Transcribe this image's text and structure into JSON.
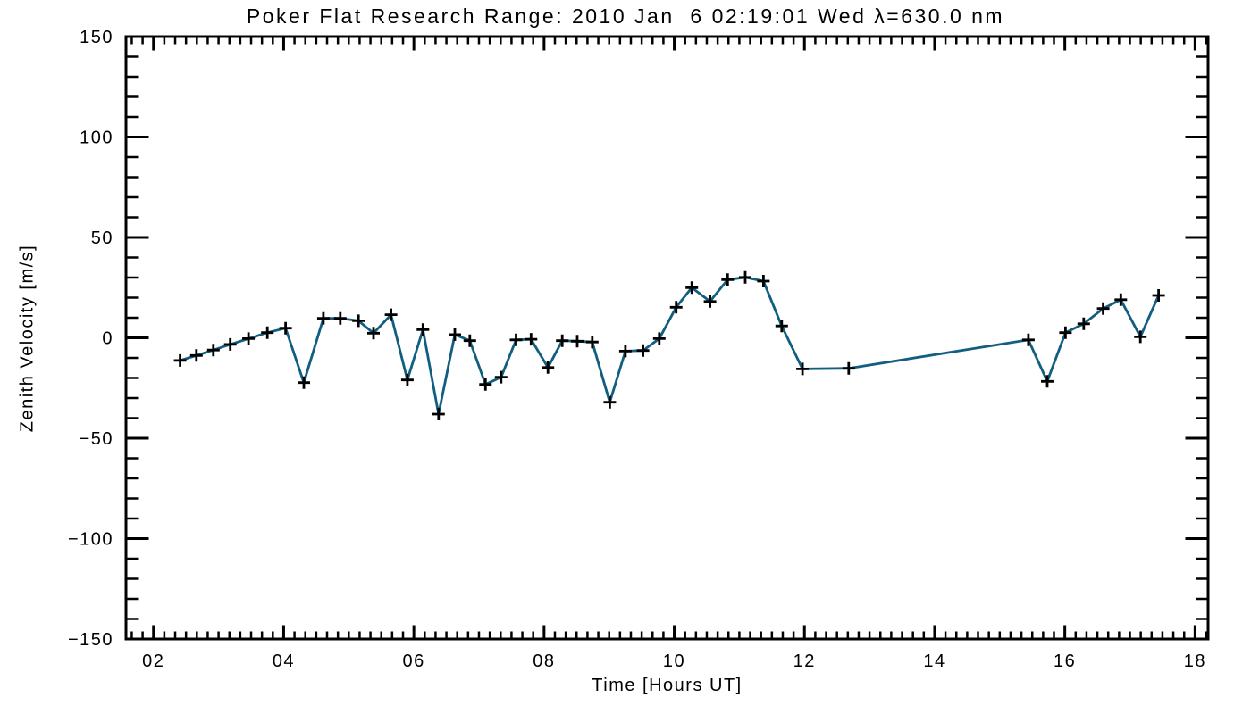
{
  "chart_data": {
    "type": "line",
    "title": "Poker Flat Research Range: 2010 Jan  6 02:19:01 Wed λ=630.0 nm",
    "xlabel": "Time [Hours UT]",
    "ylabel": "Zenith Velocity [m/s]",
    "xlim": [
      1.578,
      18.201
    ],
    "ylim": [
      -150,
      150
    ],
    "grid": false,
    "legend": false,
    "x_ticks": {
      "values": [
        2,
        4,
        6,
        8,
        10,
        12,
        14,
        16,
        18
      ],
      "labels": [
        "02",
        "04",
        "06",
        "08",
        "10",
        "12",
        "14",
        "16",
        "18"
      ],
      "minor_step": 0.1666667
    },
    "y_ticks": {
      "values": [
        150,
        100,
        50,
        0,
        -50,
        -100,
        -150
      ],
      "labels": [
        "150",
        "100",
        "50",
        "0",
        "−50",
        "−100",
        "−150"
      ],
      "minor_step": 10
    },
    "marker": "plus",
    "line_color": "#115e80",
    "marker_color": "#000000",
    "frame_color": "#000000",
    "series": [
      {
        "name": "zenith-velocity",
        "x": [
          2.41,
          2.66,
          2.92,
          3.18,
          3.46,
          3.75,
          4.03,
          4.31,
          4.61,
          4.87,
          5.15,
          5.38,
          5.65,
          5.9,
          6.14,
          6.38,
          6.63,
          6.86,
          7.1,
          7.34,
          7.57,
          7.8,
          8.06,
          8.28,
          8.51,
          8.74,
          9.01,
          9.25,
          9.52,
          9.77,
          10.03,
          10.27,
          10.55,
          10.82,
          11.09,
          11.37,
          11.65,
          11.97,
          12.68,
          15.44,
          15.73,
          16.01,
          16.29,
          16.59,
          16.86,
          17.16,
          17.44
        ],
        "y": [
          -11.3,
          -8.8,
          -6.1,
          -3.3,
          -0.4,
          2.6,
          4.8,
          -22.3,
          9.7,
          9.7,
          8.5,
          2.3,
          11.5,
          -21.0,
          4.1,
          -38.0,
          1.6,
          -1.4,
          -23.2,
          -19.6,
          -1.0,
          -0.7,
          -14.8,
          -1.4,
          -1.7,
          -2.1,
          -32.1,
          -6.6,
          -6.3,
          -0.4,
          15.2,
          25.0,
          18.1,
          29.0,
          30.1,
          28.2,
          5.9,
          -15.5,
          -15.2,
          -1.0,
          -21.7,
          2.6,
          7.0,
          14.6,
          19.0,
          0.5,
          21.1
        ]
      }
    ]
  },
  "colors": {
    "background": "#ffffff",
    "text": "#000000"
  }
}
